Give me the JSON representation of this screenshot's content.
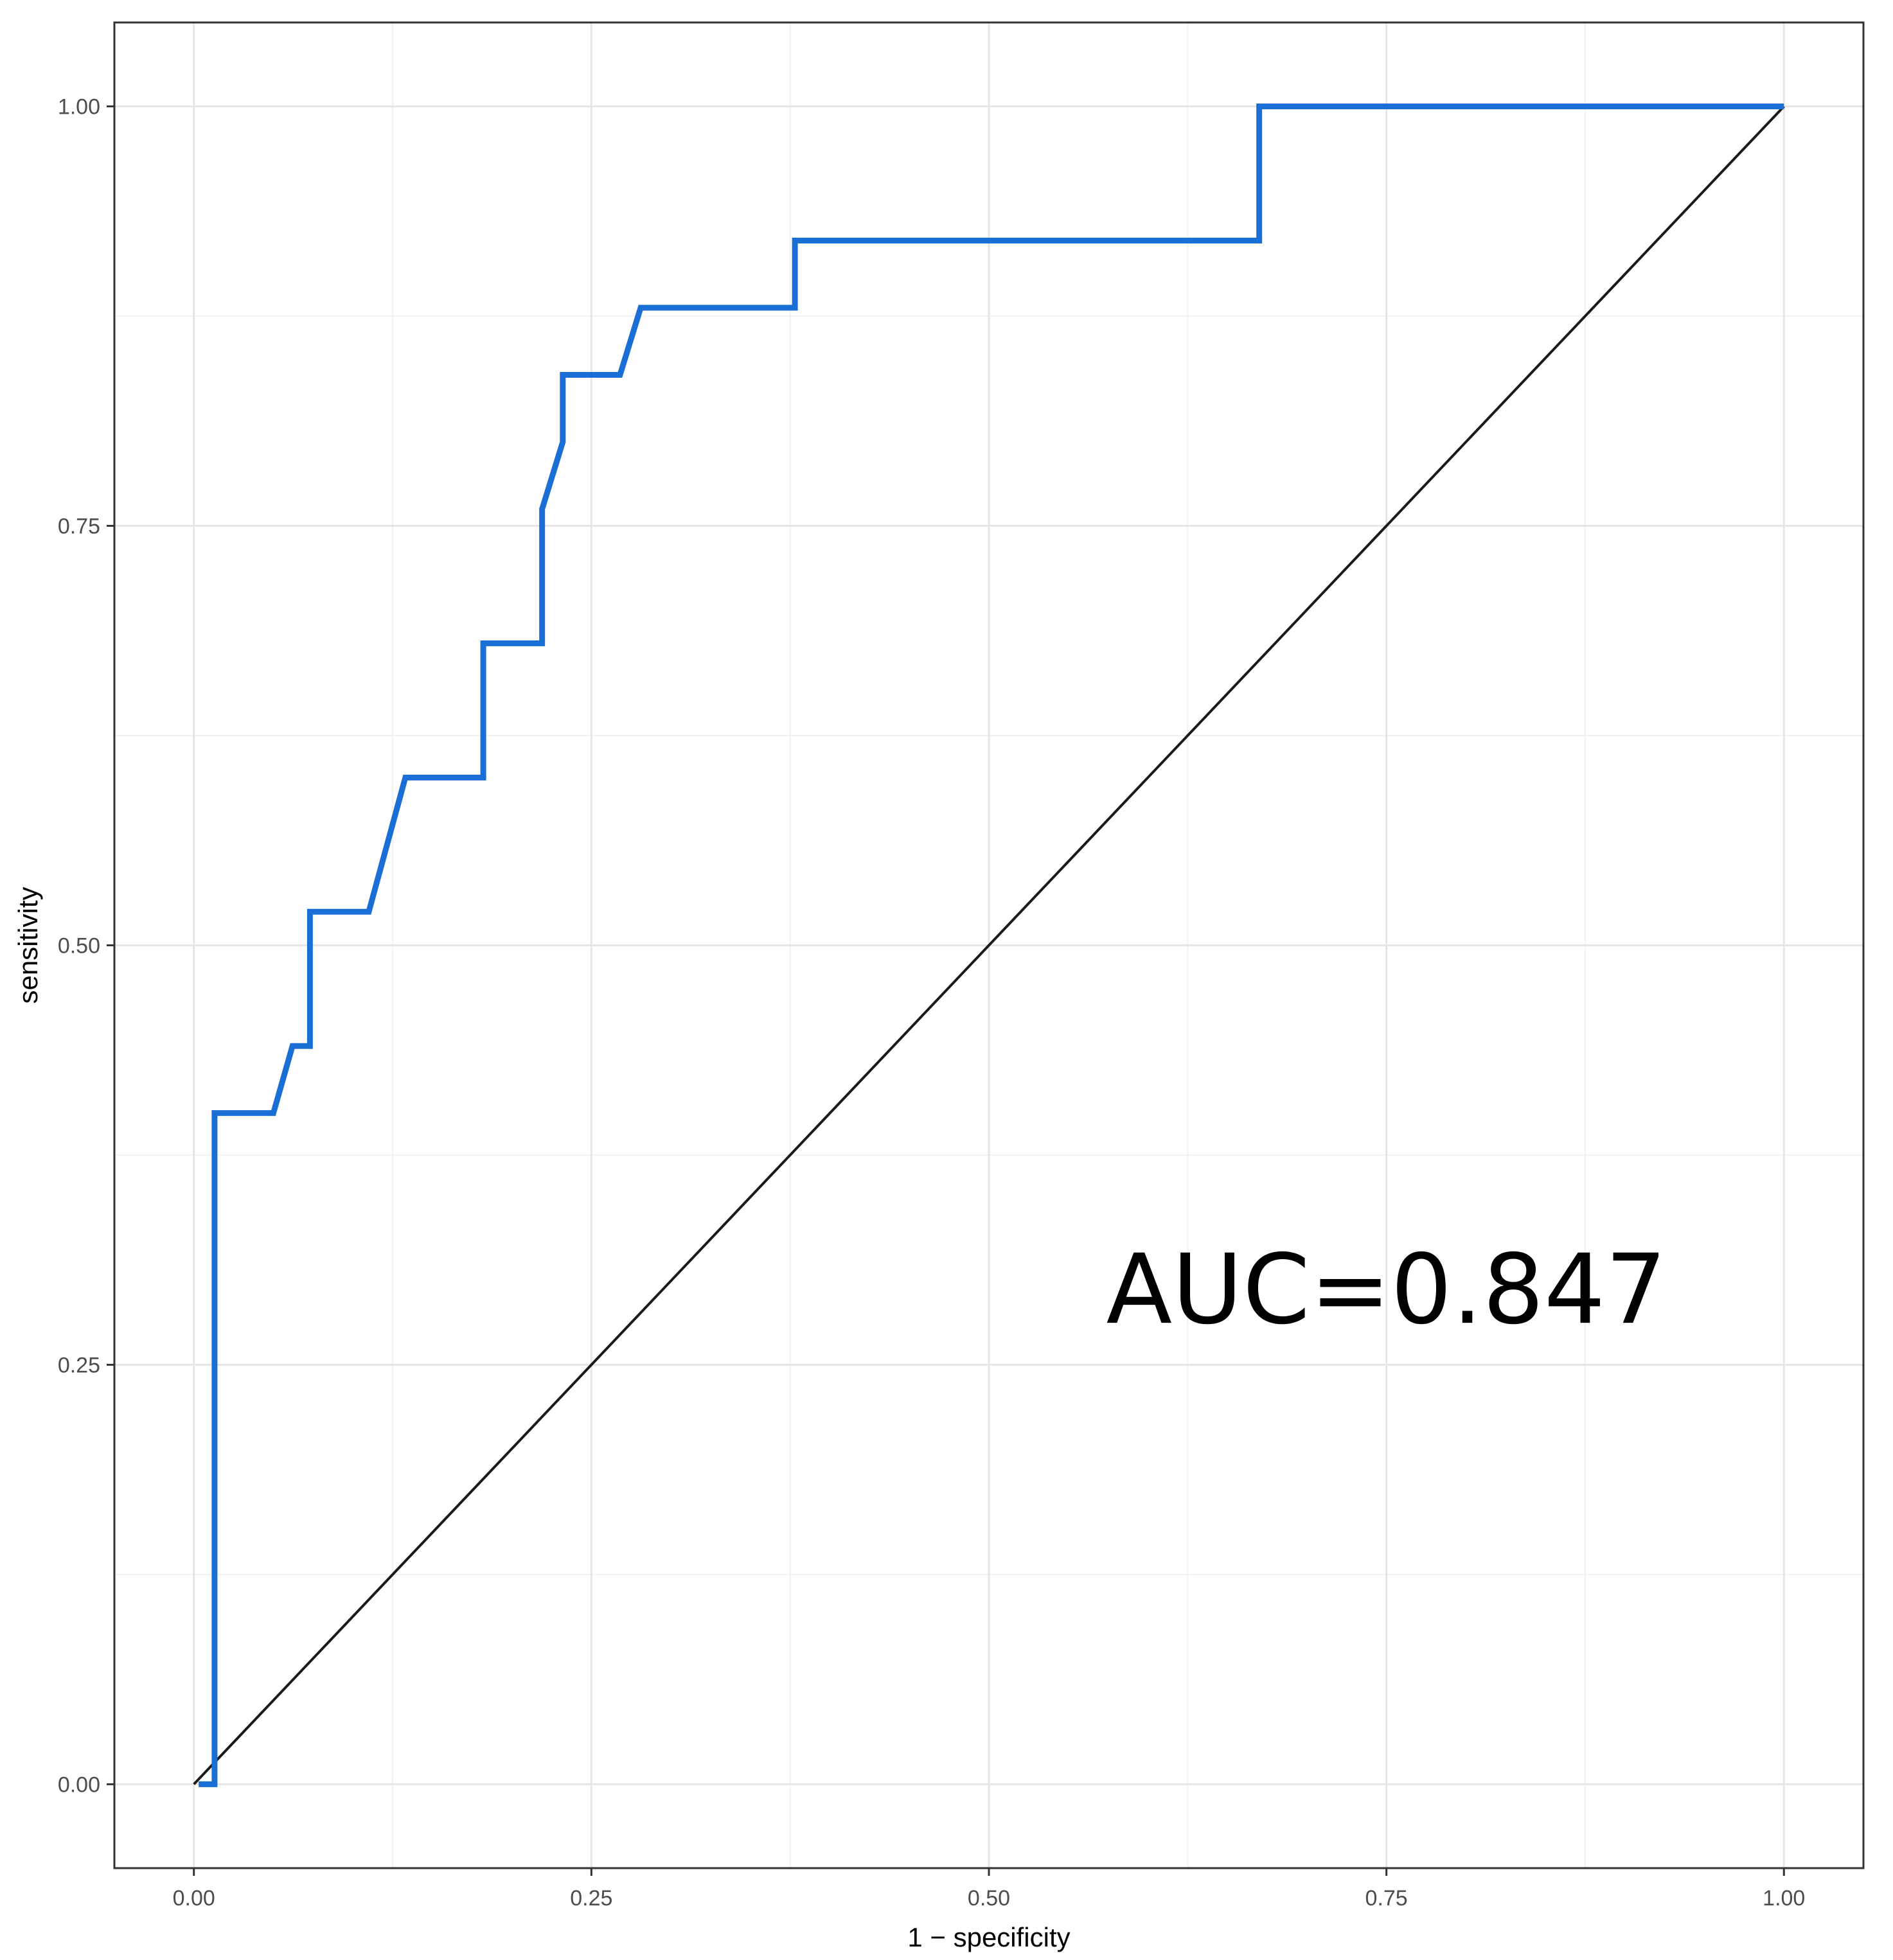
{
  "chart_data": {
    "type": "line",
    "xlabel": "1 − specificity",
    "ylabel": "sensitivity",
    "xlim": [
      -0.05,
      1.05
    ],
    "ylim": [
      -0.05,
      1.05
    ],
    "x_ticks": [
      0.0,
      0.25,
      0.5,
      0.75,
      1.0
    ],
    "y_ticks": [
      0.0,
      0.25,
      0.5,
      0.75,
      1.0
    ],
    "x_tick_labels": [
      "0.00",
      "0.25",
      "0.50",
      "0.75",
      "1.00"
    ],
    "y_tick_labels": [
      "0.00",
      "0.25",
      "0.50",
      "0.75",
      "1.00"
    ],
    "grid": true,
    "annotation": "AUC=0.847",
    "annotation_position": {
      "x": 0.75,
      "y": 0.275
    },
    "series": [
      {
        "role": "roc",
        "color": "#1a6fd6",
        "points": [
          [
            0.003,
            0.0
          ],
          [
            0.013,
            0.0
          ],
          [
            0.013,
            0.4
          ],
          [
            0.05,
            0.4
          ],
          [
            0.062,
            0.44
          ],
          [
            0.073,
            0.44
          ],
          [
            0.073,
            0.52
          ],
          [
            0.11,
            0.52
          ],
          [
            0.133,
            0.6
          ],
          [
            0.182,
            0.6
          ],
          [
            0.182,
            0.68
          ],
          [
            0.219,
            0.68
          ],
          [
            0.219,
            0.76
          ],
          [
            0.232,
            0.8
          ],
          [
            0.232,
            0.84
          ],
          [
            0.268,
            0.84
          ],
          [
            0.281,
            0.88
          ],
          [
            0.378,
            0.88
          ],
          [
            0.378,
            0.92
          ],
          [
            0.67,
            0.92
          ],
          [
            0.67,
            1.0
          ],
          [
            1.0,
            1.0
          ]
        ]
      },
      {
        "role": "reference",
        "color": "#1a1a1a",
        "points": [
          [
            0.0,
            0.0
          ],
          [
            1.0,
            1.0
          ]
        ]
      }
    ]
  }
}
